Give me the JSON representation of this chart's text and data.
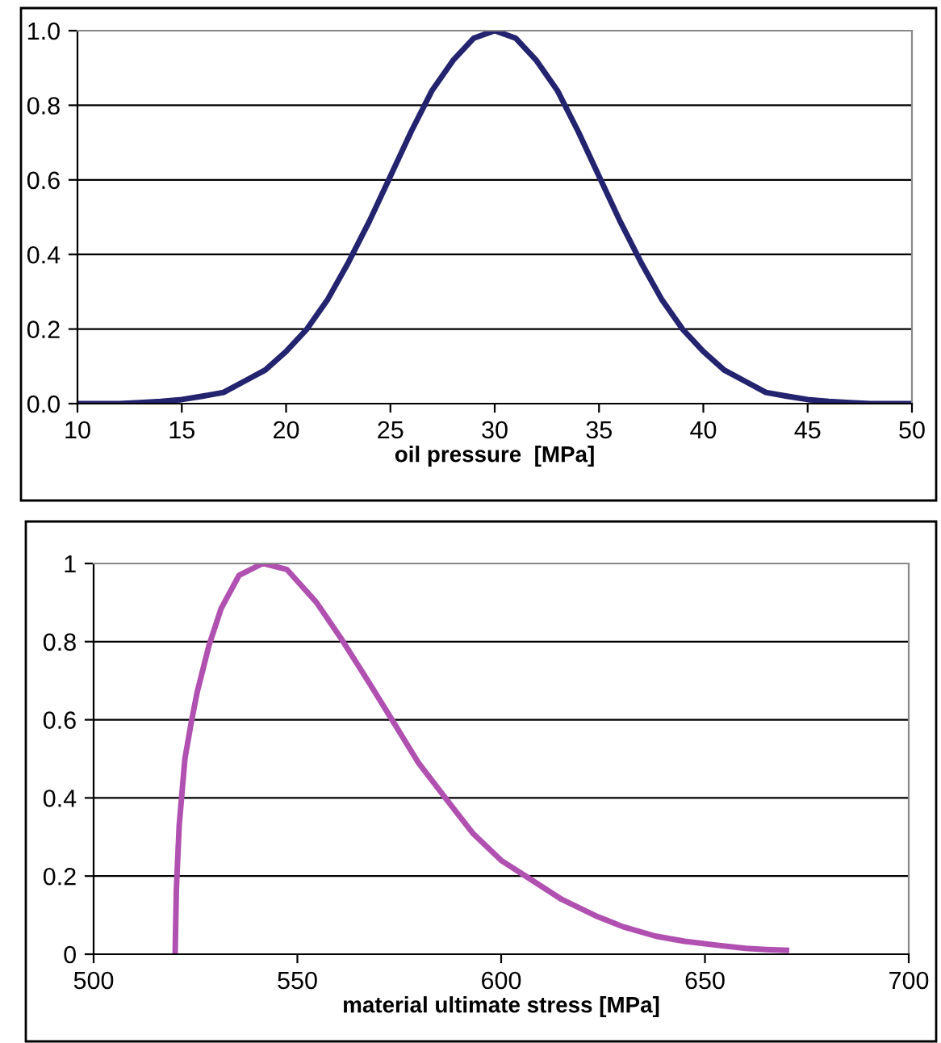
{
  "chart_data": [
    {
      "type": "line",
      "xlabel": "oil pressure  [MPa]",
      "xlim": [
        10,
        50
      ],
      "xticks": [
        10,
        15,
        20,
        25,
        30,
        35,
        40,
        45,
        50
      ],
      "ylim": [
        0,
        1
      ],
      "yticks": [
        {
          "value": 0,
          "label": "0.0"
        },
        0.2,
        0.4,
        0.6,
        0.8,
        {
          "value": 1,
          "label": "1.0"
        }
      ],
      "grid": "y",
      "marker": "none",
      "line_style": "solid",
      "x": [
        10,
        11,
        12,
        13,
        14,
        15,
        16,
        17,
        18,
        19,
        20,
        21,
        22,
        23,
        24,
        25,
        26,
        27,
        28,
        29,
        30,
        31,
        32,
        33,
        34,
        35,
        36,
        37,
        38,
        39,
        40,
        41,
        42,
        43,
        44,
        45,
        46,
        47,
        48,
        49,
        50
      ],
      "series": [
        {
          "color": "#23236f",
          "values": [
            0,
            0,
            0,
            0.003,
            0.006,
            0.011,
            0.02,
            0.03,
            0.06,
            0.09,
            0.14,
            0.2,
            0.28,
            0.38,
            0.49,
            0.61,
            0.73,
            0.84,
            0.92,
            0.98,
            1,
            0.98,
            0.92,
            0.84,
            0.73,
            0.61,
            0.49,
            0.38,
            0.28,
            0.2,
            0.14,
            0.09,
            0.06,
            0.03,
            0.02,
            0.011,
            0.006,
            0.003,
            0,
            0,
            0
          ]
        }
      ]
    },
    {
      "type": "line",
      "xlabel": "material ultimate stress [MPa]",
      "xlim": [
        500,
        700
      ],
      "xticks": [
        500,
        550,
        600,
        650,
        700
      ],
      "ylim": [
        0,
        1
      ],
      "yticks": [
        0,
        0.2,
        0.4,
        0.6,
        0.8,
        1
      ],
      "grid": "y",
      "marker": "none",
      "line_style": "solid",
      "x": [
        520,
        520.3,
        521,
        522.4,
        523.9,
        525.4,
        528.3,
        531.3,
        535.7,
        541.5,
        547.4,
        554.7,
        560.6,
        567.9,
        573.8,
        579.7,
        586.3,
        593,
        600,
        606,
        614.9,
        623.7,
        630,
        638,
        645,
        653,
        660,
        665,
        670
      ],
      "series": [
        {
          "color": "#b050b0",
          "values": [
            0,
            0.165,
            0.33,
            0.5,
            0.59,
            0.67,
            0.79,
            0.885,
            0.97,
            1,
            0.985,
            0.9,
            0.81,
            0.69,
            0.59,
            0.49,
            0.4,
            0.31,
            0.24,
            0.2,
            0.14,
            0.096,
            0.07,
            0.046,
            0.033,
            0.023,
            0.015,
            0.012,
            0.01
          ]
        }
      ]
    }
  ]
}
